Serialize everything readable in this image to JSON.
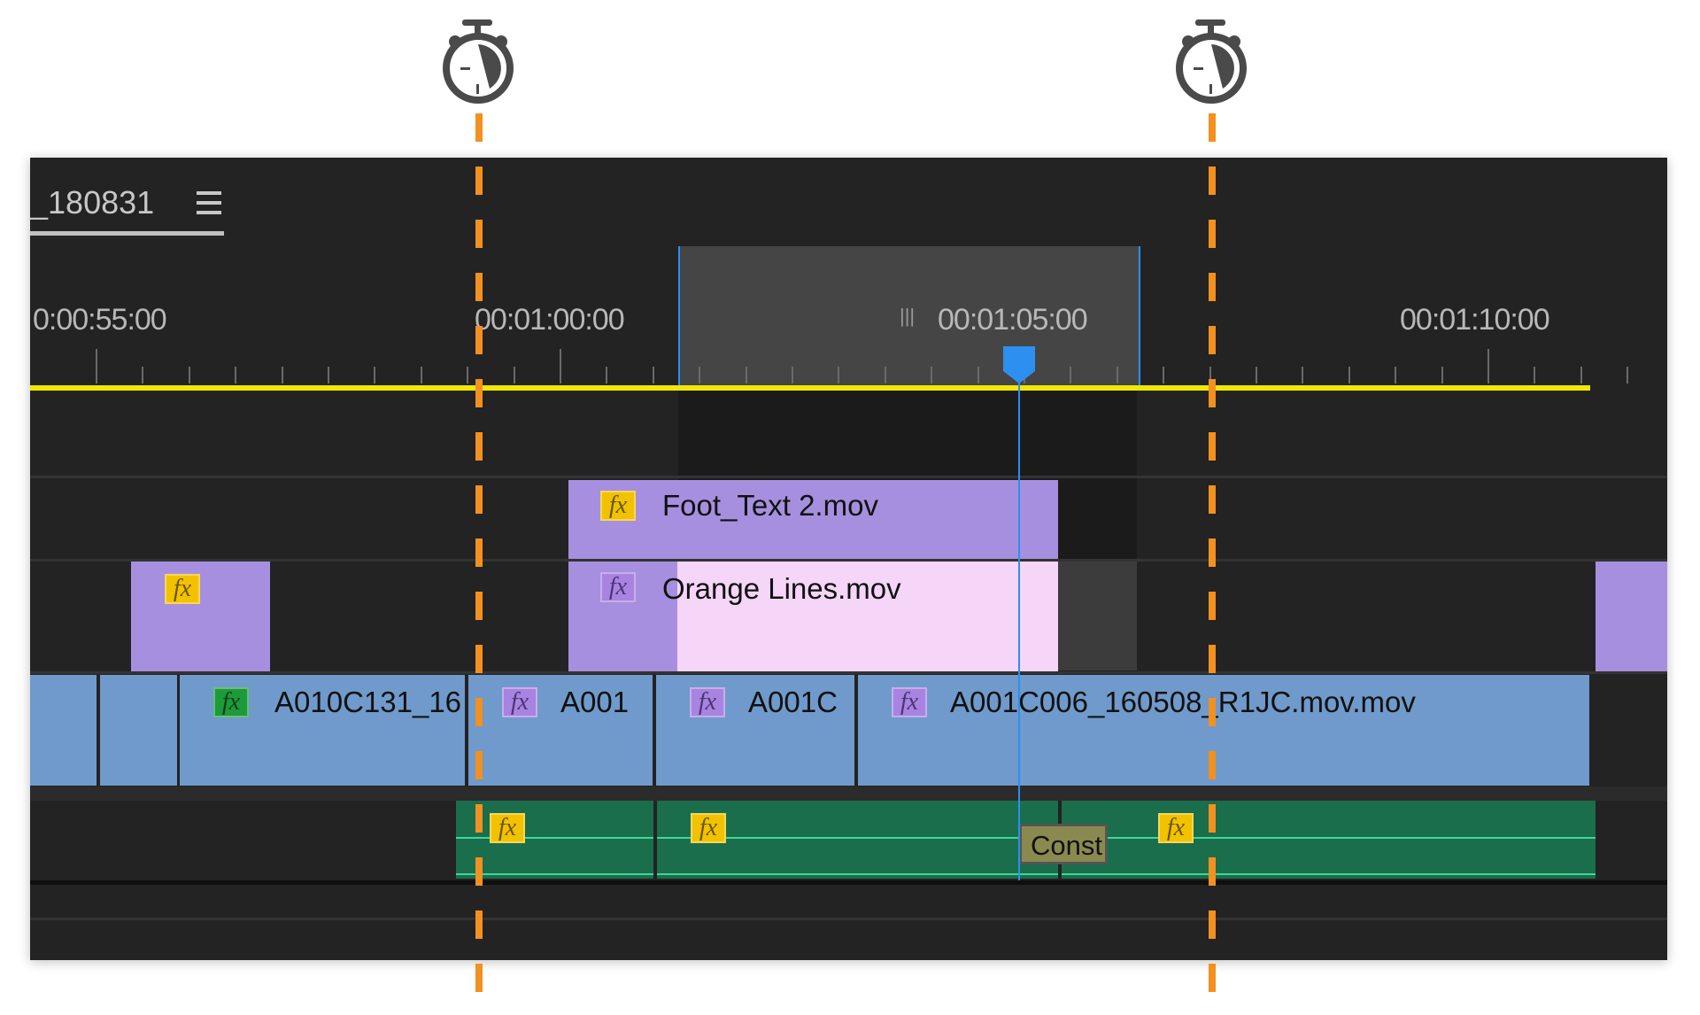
{
  "panel": {
    "sequence_title": "_180831",
    "menu_icon": "hamburger-icon"
  },
  "ruler": {
    "timecodes": [
      "0:00:55:00",
      "00:01:00:00",
      "00:01:05:00",
      "00:01:10:00"
    ],
    "work_area_marker": "|||"
  },
  "markers": {
    "icon": "stopwatch-icon",
    "color": "#f29020"
  },
  "tracks": {
    "v3": [
      {
        "name": "Foot_Text 2.mov",
        "fx": "yellow"
      }
    ],
    "v2": [
      {
        "name": "",
        "fx": "yellow"
      },
      {
        "name": "Orange Lines.mov",
        "fx": "purple"
      },
      {
        "name": "",
        "fx": ""
      }
    ],
    "v1": [
      {
        "name": ""
      },
      {
        "name": ""
      },
      {
        "name": "A010C131_16",
        "fx": "green"
      },
      {
        "name": "A001",
        "fx": "purple"
      },
      {
        "name": "A001C",
        "fx": "purple"
      },
      {
        "name": "A001C006_160508_R1JC.mov.mov",
        "fx": "purple"
      }
    ],
    "a1": [
      {
        "fx": "yellow"
      },
      {
        "fx": "yellow"
      },
      {
        "fx": "yellow"
      }
    ],
    "transition": "Const"
  },
  "colors": {
    "video_clip": "#6f9acb",
    "graphic_clip": "#a78fdf",
    "selected_clip": "#f5d5f8",
    "audio_clip": "#1a6e4c",
    "playhead": "#2d8ff0",
    "work_area_bar": "#f0e800"
  }
}
